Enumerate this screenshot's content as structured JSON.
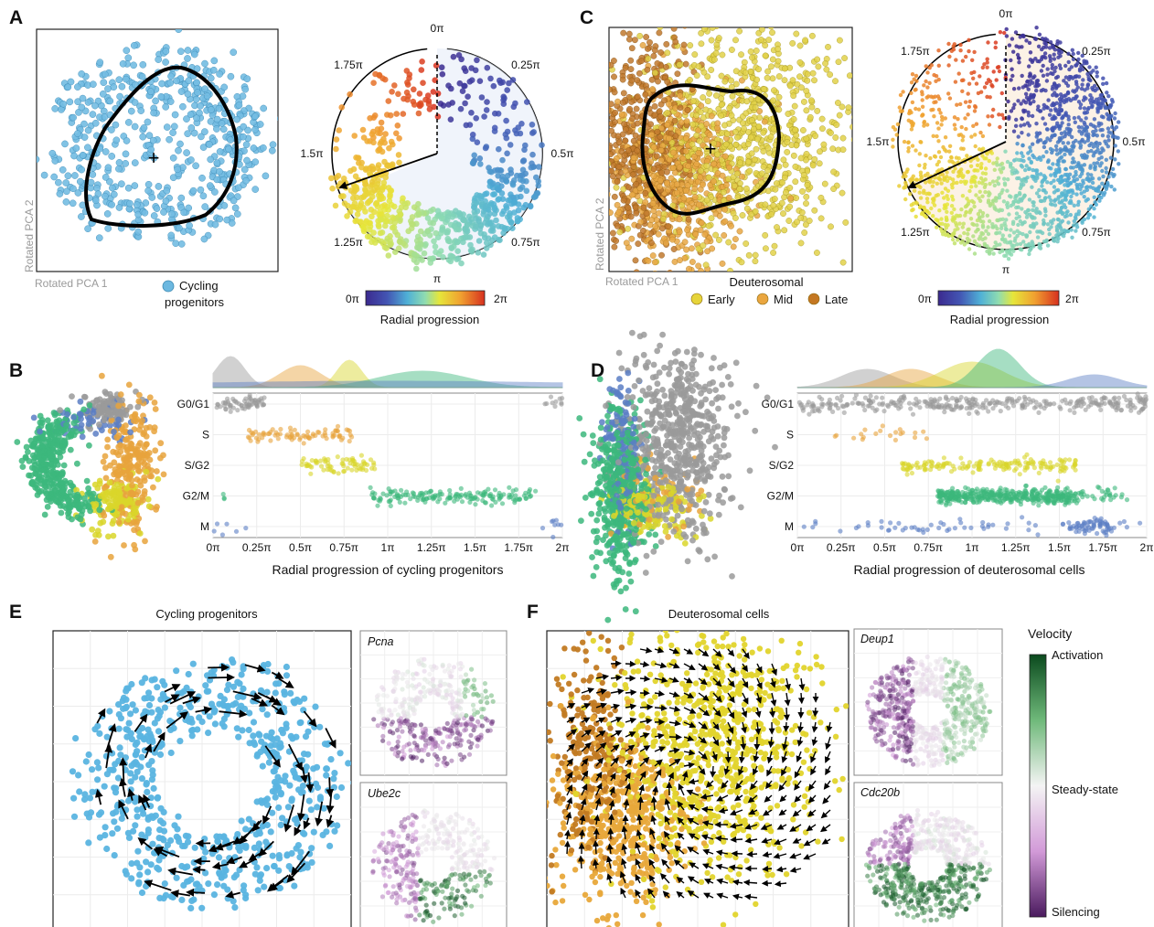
{
  "panels": {
    "A": {
      "letter": "A",
      "scatter": {
        "xlabel": "Rotated PCA 1",
        "ylabel": "Rotated PCA 2",
        "legend_label": "Cycling progenitors",
        "color": "#6cb8e0"
      },
      "radial": {
        "ticks": [
          "0π",
          "0.25π",
          "0.5π",
          "0.75π",
          "π",
          "1.25π",
          "1.5π",
          "1.75π"
        ]
      },
      "colorbar": {
        "min": "0π",
        "max": "2π",
        "label": "Radial progression"
      }
    },
    "B": {
      "letter": "B",
      "strip": {
        "categories": [
          "G0/G1",
          "S",
          "S/G2",
          "G2/M",
          "M"
        ],
        "xticks": [
          "0π",
          "0.25π",
          "0.5π",
          "0.75π",
          "1π",
          "1.25π",
          "1.5π",
          "1.75π",
          "2π"
        ],
        "xlabel": "Radial progression of cycling progenitors"
      }
    },
    "C": {
      "letter": "C",
      "scatter": {
        "xlabel": "Rotated PCA 1",
        "ylabel": "Rotated PCA 2",
        "legend_title": "Deuterosomal",
        "legend_items": [
          {
            "label": "Early",
            "color": "#e6d43a"
          },
          {
            "label": "Mid",
            "color": "#eaa63f"
          },
          {
            "label": "Late",
            "color": "#c47722"
          }
        ]
      },
      "radial": {
        "ticks": [
          "0π",
          "0.25π",
          "0.5π",
          "0.75π",
          "π",
          "1.25π",
          "1.5π",
          "1.75π"
        ]
      },
      "colorbar": {
        "min": "0π",
        "max": "2π",
        "label": "Radial progression"
      }
    },
    "D": {
      "letter": "D",
      "strip": {
        "categories": [
          "G0/G1",
          "S",
          "S/G2",
          "G2/M",
          "M"
        ],
        "xticks": [
          "0π",
          "0.25π",
          "0.5π",
          "0.75π",
          "1π",
          "1.25π",
          "1.5π",
          "1.75π",
          "2π"
        ],
        "xlabel": "Radial progression of deuterosomal cells"
      }
    },
    "E": {
      "letter": "E",
      "title": "Cycling progenitors",
      "genes": [
        "Pcna",
        "Ube2c"
      ]
    },
    "F": {
      "letter": "F",
      "title": "Deuterosomal cells",
      "genes": [
        "Deup1",
        "Cdc20b"
      ],
      "velocity": {
        "title": "Velocity",
        "top": "Activation",
        "mid": "Steady-state",
        "bottom": "Silencing"
      }
    }
  },
  "phase_colors": {
    "G0/G1": "#9a9a9a",
    "S": "#e8a33c",
    "S/G2": "#d9d62a",
    "G2/M": "#3cb77c",
    "M": "#5b7ec4"
  }
}
